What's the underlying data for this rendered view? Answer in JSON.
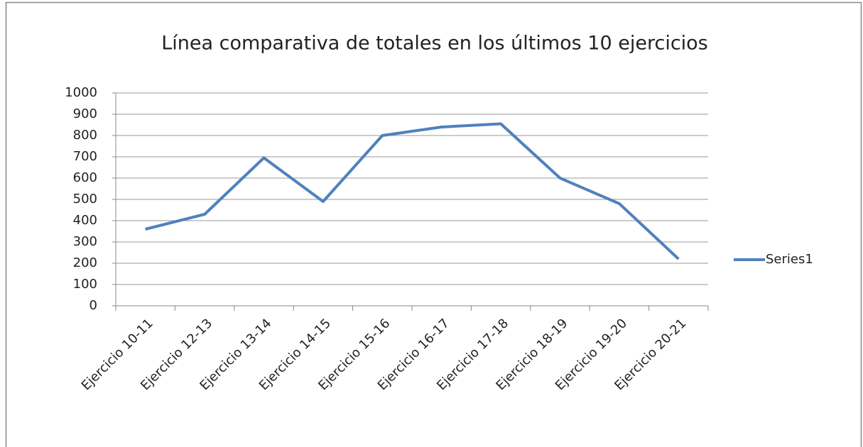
{
  "chart_data": {
    "type": "line",
    "title": "Línea comparativa de totales en los últimos 10 ejercicios",
    "categories": [
      "Ejercicio 10-11",
      "Ejercicio 12-13",
      "Ejercicio 13-14",
      "Ejercicio 14-15",
      "Ejercicio 15-16",
      "Ejercicio 16-17",
      "Ejercicio 17-18",
      "Ejercicio 18-19",
      "Ejercicio 19-20",
      "Ejercicio 20-21"
    ],
    "series": [
      {
        "name": "Series1",
        "color": "#4f81bd",
        "values": [
          360,
          430,
          695,
          490,
          800,
          840,
          855,
          600,
          480,
          220
        ]
      }
    ],
    "ylim": [
      0,
      1000
    ],
    "yticks": [
      0,
      100,
      200,
      300,
      400,
      500,
      600,
      700,
      800,
      900,
      1000
    ],
    "grid": true,
    "legend": "right"
  }
}
